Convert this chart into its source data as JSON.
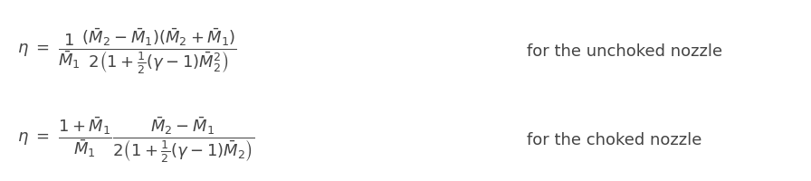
{
  "eq1_lhs": "$\\eta$",
  "eq1_eq": "$=$",
  "eq1_frac1": "$\\dfrac{1}{\\bar{\\mathcal{M}}_1}$",
  "eq1_frac2": "$\\dfrac{(\\bar{\\mathcal{M}}_2 - \\bar{\\mathcal{M}}_1)(\\bar{\\mathcal{M}}_2 + \\bar{\\mathcal{M}}_1)}{2\\left(1 + \\frac{1}{2}(\\gamma - 1)\\bar{\\mathcal{M}}_2^2\\right)}$",
  "eq1_text": "for the unchoked nozzle",
  "eq2_lhs": "$\\eta$",
  "eq2_eq": "$=$",
  "eq2_frac1": "$\\dfrac{1 + \\bar{\\mathcal{M}}_1}{\\bar{\\mathcal{M}}_1}$",
  "eq2_frac2": "$\\dfrac{\\bar{\\mathcal{M}}_2 - \\bar{\\mathcal{M}}_1}{2\\left(1 + \\frac{1}{2}(\\gamma - 1)\\bar{\\mathcal{M}}_2\\right)}$",
  "eq2_text": "for the choked nozzle",
  "bg_color": "#ffffff",
  "text_color": "#444444",
  "fontsize": 13
}
